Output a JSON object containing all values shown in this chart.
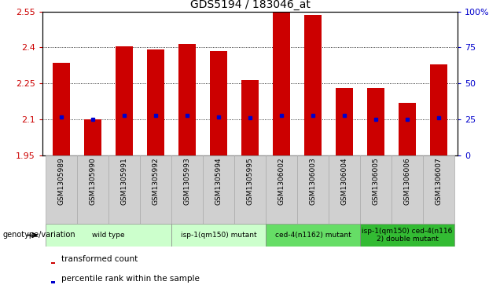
{
  "title": "GDS5194 / 183046_at",
  "samples": [
    "GSM1305989",
    "GSM1305990",
    "GSM1305991",
    "GSM1305992",
    "GSM1305993",
    "GSM1305994",
    "GSM1305995",
    "GSM1306002",
    "GSM1306003",
    "GSM1306004",
    "GSM1306005",
    "GSM1306006",
    "GSM1306007"
  ],
  "transformed_count": [
    2.335,
    2.1,
    2.405,
    2.39,
    2.415,
    2.385,
    2.265,
    2.55,
    2.535,
    2.23,
    2.23,
    2.17,
    2.33
  ],
  "percentile_rank": [
    2.11,
    2.1,
    2.115,
    2.115,
    2.115,
    2.11,
    2.108,
    2.115,
    2.115,
    2.115,
    2.1,
    2.1,
    2.105
  ],
  "bar_bottom": 1.95,
  "ylim_left": [
    1.95,
    2.55
  ],
  "ylim_right": [
    0,
    100
  ],
  "yticks_left": [
    1.95,
    2.1,
    2.25,
    2.4,
    2.55
  ],
  "yticks_left_labels": [
    "1.95",
    "2.1",
    "2.25",
    "2.4",
    "2.55"
  ],
  "yticks_right": [
    0,
    25,
    50,
    75,
    100
  ],
  "yticks_right_labels": [
    "0",
    "25",
    "50",
    "75",
    "100%"
  ],
  "bar_color": "#CC0000",
  "marker_color": "#0000CC",
  "background_color": "#ffffff",
  "group_ranges": [
    {
      "start": 0,
      "end": 3,
      "label": "wild type",
      "color": "#ccffcc"
    },
    {
      "start": 4,
      "end": 6,
      "label": "isp-1(qm150) mutant",
      "color": "#ccffcc"
    },
    {
      "start": 7,
      "end": 9,
      "label": "ced-4(n1162) mutant",
      "color": "#66dd66"
    },
    {
      "start": 10,
      "end": 12,
      "label": "isp-1(qm150) ced-4(n116\n2) double mutant",
      "color": "#33bb33"
    }
  ]
}
